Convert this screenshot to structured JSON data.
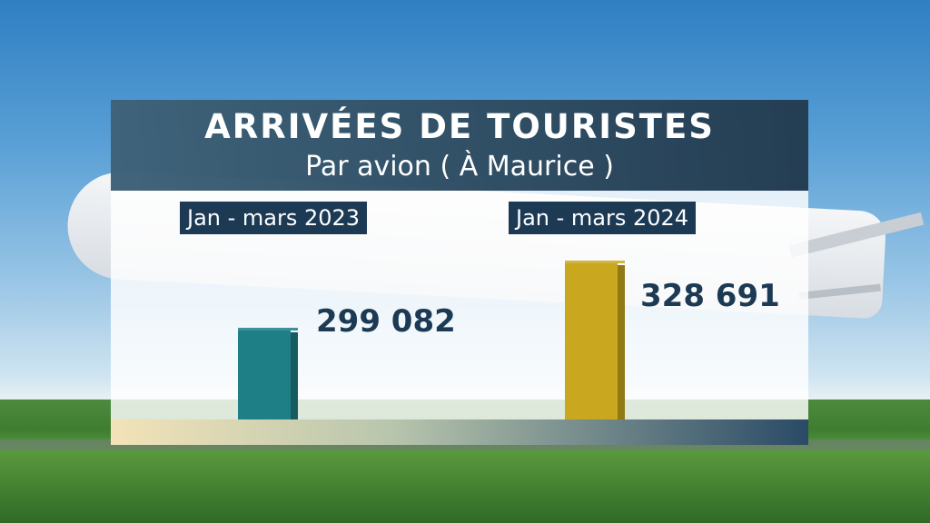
{
  "chart_data": {
    "type": "bar",
    "title": "ARRIVÉES DE TOURISTES",
    "subtitle": "Par avion ( À Maurice )",
    "categories": [
      "Jan - mars 2023",
      "Jan - mars 2024"
    ],
    "values": [
      299082,
      328691
    ],
    "value_labels": [
      "299 082",
      "328 691"
    ],
    "colors": [
      "#1f7f86",
      "#c9a81f"
    ],
    "grid": false,
    "legend": "none"
  }
}
